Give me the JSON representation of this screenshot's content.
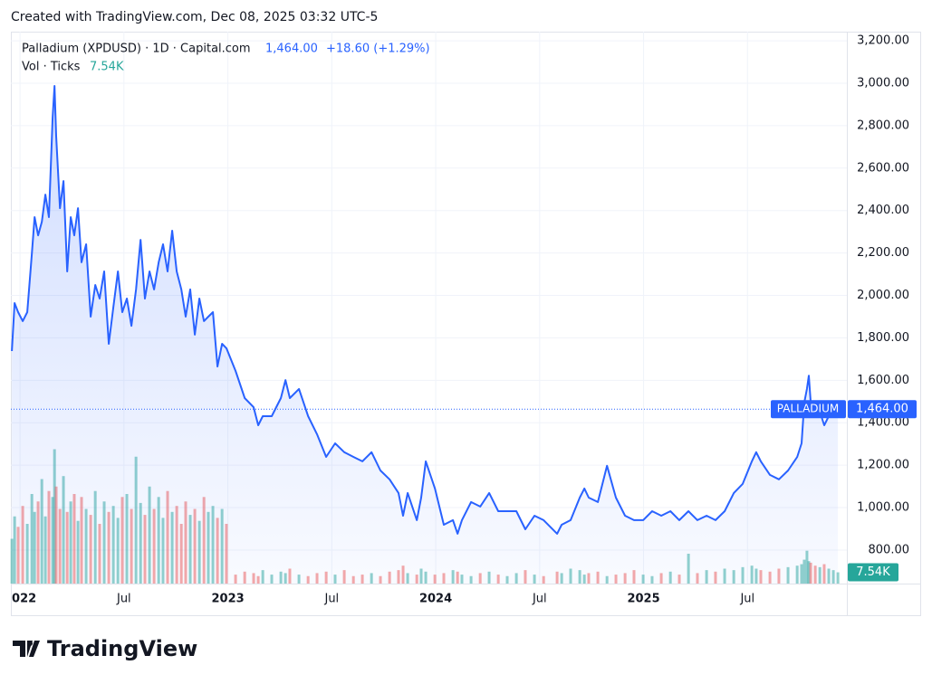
{
  "header": "Created with TradingView.com, Dec 08, 2025 03:32 UTC-5",
  "logo": "TradingView",
  "chart_data": {
    "type": "line",
    "title": "Palladium (XPDUSD) · 1D · Capital.com",
    "last": 1464,
    "last_label": "1,464.00",
    "change_label": "+18.60 (+1.29%)",
    "badge": "PALLADIUM",
    "color": "#2962ff",
    "grid": true,
    "xlim": [
      2021.956,
      2025.978
    ],
    "xticks": [
      {
        "value": 2022,
        "label": "2022"
      },
      {
        "value": 2022.5,
        "label": "Jul"
      },
      {
        "value": 2023,
        "label": "2023"
      },
      {
        "value": 2023.5,
        "label": "Jul"
      },
      {
        "value": 2024,
        "label": "2024"
      },
      {
        "value": 2024.5,
        "label": "Jul"
      },
      {
        "value": 2025,
        "label": "2025"
      },
      {
        "value": 2025.5,
        "label": "Jul"
      }
    ],
    "ylim": [
      642,
      3243
    ],
    "yticks": [
      {
        "value": 800,
        "label": "800.00"
      },
      {
        "value": 1000,
        "label": "1,000.00"
      },
      {
        "value": 1200,
        "label": "1,200.00"
      },
      {
        "value": 1400,
        "label": "1,400.00"
      },
      {
        "value": 1600,
        "label": "1,600.00"
      },
      {
        "value": 1800,
        "label": "1,800.00"
      },
      {
        "value": 2000,
        "label": "2,000.00"
      },
      {
        "value": 2200,
        "label": "2,200.00"
      },
      {
        "value": 2400,
        "label": "2,400.00"
      },
      {
        "value": 2600,
        "label": "2,600.00"
      },
      {
        "value": 2800,
        "label": "2,800.00"
      },
      {
        "value": 3000,
        "label": "3,000.00"
      },
      {
        "value": 3200,
        "label": "3,200.00"
      }
    ],
    "x": [
      2021.961,
      2021.974,
      2021.991,
      2022.013,
      2022.035,
      2022.057,
      2022.07,
      2022.087,
      2022.105,
      2022.122,
      2022.139,
      2022.157,
      2022.166,
      2022.174,
      2022.192,
      2022.209,
      2022.227,
      2022.244,
      2022.261,
      2022.279,
      2022.296,
      2022.318,
      2022.34,
      2022.362,
      2022.383,
      2022.405,
      2022.427,
      2022.449,
      2022.471,
      2022.492,
      2022.514,
      2022.536,
      2022.558,
      2022.58,
      2022.601,
      2022.623,
      2022.645,
      2022.667,
      2022.688,
      2022.71,
      2022.732,
      2022.754,
      2022.776,
      2022.797,
      2022.819,
      2022.841,
      2022.863,
      2022.885,
      2022.906,
      2022.928,
      2022.95,
      2022.972,
      2022.993,
      2023.037,
      2023.081,
      2023.124,
      2023.146,
      2023.168,
      2023.211,
      2023.255,
      2023.277,
      2023.298,
      2023.342,
      2023.386,
      2023.429,
      2023.473,
      2023.516,
      2023.56,
      2023.604,
      2023.647,
      2023.691,
      2023.734,
      2023.778,
      2023.821,
      2023.843,
      2023.865,
      2023.909,
      2023.93,
      2023.952,
      2023.996,
      2024.039,
      2024.083,
      2024.105,
      2024.126,
      2024.17,
      2024.214,
      2024.257,
      2024.301,
      2024.344,
      2024.388,
      2024.431,
      2024.475,
      2024.519,
      2024.584,
      2024.606,
      2024.649,
      2024.693,
      2024.715,
      2024.736,
      2024.78,
      2024.824,
      2024.867,
      2024.911,
      2024.954,
      2024.998,
      2025.041,
      2025.085,
      2025.129,
      2025.172,
      2025.216,
      2025.259,
      2025.303,
      2025.346,
      2025.39,
      2025.434,
      2025.477,
      2025.521,
      2025.542,
      2025.564,
      2025.608,
      2025.651,
      2025.695,
      2025.739,
      2025.76,
      2025.773,
      2025.786,
      2025.795,
      2025.804,
      2025.826,
      2025.848,
      2025.869,
      2025.891,
      2025.913,
      2025.935
    ],
    "series": [
      {
        "name": "Palladium (XPDUSD)",
        "color": "#2962ff",
        "values": [
          1738,
          1964,
          1921,
          1879,
          1921,
          2198,
          2369,
          2283,
          2347,
          2475,
          2369,
          2838,
          2987,
          2752,
          2411,
          2539,
          2113,
          2369,
          2283,
          2411,
          2156,
          2241,
          1900,
          2049,
          1985,
          2113,
          1772,
          1943,
          2113,
          1921,
          1985,
          1857,
          2028,
          2262,
          1985,
          2113,
          2028,
          2156,
          2241,
          2113,
          2305,
          2113,
          2028,
          1900,
          2028,
          1815,
          1985,
          1879,
          1900,
          1921,
          1665,
          1772,
          1751,
          1644,
          1516,
          1473,
          1388,
          1431,
          1431,
          1516,
          1601,
          1516,
          1559,
          1431,
          1346,
          1239,
          1303,
          1261,
          1239,
          1218,
          1261,
          1175,
          1133,
          1069,
          962,
          1069,
          941,
          1047,
          1218,
          1090,
          919,
          941,
          877,
          941,
          1026,
          1005,
          1069,
          983,
          983,
          983,
          898,
          962,
          941,
          877,
          919,
          941,
          1047,
          1090,
          1047,
          1026,
          1197,
          1047,
          962,
          941,
          941,
          983,
          962,
          983,
          941,
          983,
          941,
          962,
          941,
          983,
          1069,
          1112,
          1218,
          1261,
          1218,
          1154,
          1133,
          1175,
          1239,
          1303,
          1495,
          1559,
          1622,
          1495,
          1431,
          1452,
          1388,
          1431,
          1431,
          1464
        ]
      }
    ],
    "volume": {
      "name": "Vol · Ticks",
      "value_label": "7.54K",
      "ylim": [
        0,
        100
      ],
      "up_color": "rgba(38,166,154,0.5)",
      "down_color": "rgba(239,83,80,0.5)",
      "badge_color": "#26a69a",
      "values": [
        30,
        45,
        38,
        52,
        40,
        60,
        48,
        55,
        70,
        45,
        62,
        58,
        90,
        65,
        50,
        72,
        48,
        55,
        60,
        42,
        58,
        50,
        46,
        62,
        40,
        55,
        48,
        52,
        44,
        58,
        60,
        50,
        85,
        54,
        46,
        65,
        50,
        58,
        44,
        62,
        48,
        52,
        40,
        55,
        46,
        50,
        42,
        58,
        48,
        52,
        44,
        50,
        40,
        6,
        8,
        7,
        5,
        9,
        6,
        8,
        7,
        10,
        6,
        5,
        7,
        8,
        6,
        9,
        5,
        6,
        7,
        5,
        8,
        9,
        12,
        7,
        6,
        10,
        8,
        6,
        7,
        9,
        8,
        6,
        5,
        7,
        8,
        6,
        5,
        7,
        9,
        6,
        5,
        8,
        7,
        10,
        9,
        6,
        7,
        8,
        5,
        6,
        7,
        9,
        6,
        5,
        7,
        8,
        6,
        20,
        7,
        9,
        8,
        10,
        9,
        11,
        12,
        10,
        9,
        8,
        10,
        11,
        12,
        13,
        16,
        22,
        15,
        14,
        12,
        11,
        13,
        10,
        9,
        7.54
      ]
    }
  }
}
